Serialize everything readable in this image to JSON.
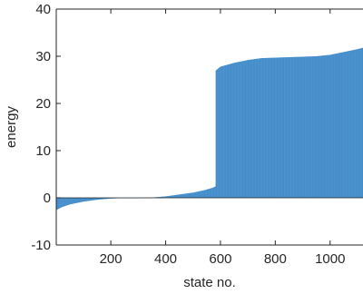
{
  "chart_data": {
    "type": "bar",
    "title": "",
    "xlabel": "state no.",
    "ylabel": "energy",
    "xlim": [
      1,
      1120
    ],
    "ylim": [
      -10,
      40
    ],
    "xticks": [
      200,
      400,
      600,
      800,
      1000
    ],
    "yticks": [
      -10,
      0,
      10,
      20,
      30,
      40
    ],
    "grid": false,
    "bar_color": "#3A87C8",
    "n_states": 1120,
    "profile": [
      [
        1,
        -2.6
      ],
      [
        20,
        -2.0
      ],
      [
        50,
        -1.4
      ],
      [
        100,
        -0.8
      ],
      [
        150,
        -0.4
      ],
      [
        200,
        -0.15
      ],
      [
        250,
        -0.05
      ],
      [
        300,
        0.0
      ],
      [
        350,
        0.05
      ],
      [
        400,
        0.3
      ],
      [
        450,
        0.7
      ],
      [
        500,
        1.1
      ],
      [
        540,
        1.6
      ],
      [
        570,
        2.1
      ],
      [
        582,
        2.4
      ],
      [
        583,
        27.0
      ],
      [
        600,
        27.8
      ],
      [
        650,
        28.6
      ],
      [
        700,
        29.2
      ],
      [
        750,
        29.6
      ],
      [
        800,
        29.7
      ],
      [
        850,
        29.8
      ],
      [
        900,
        29.9
      ],
      [
        950,
        30.0
      ],
      [
        1000,
        30.3
      ],
      [
        1050,
        30.9
      ],
      [
        1100,
        31.5
      ],
      [
        1120,
        31.8
      ]
    ]
  }
}
